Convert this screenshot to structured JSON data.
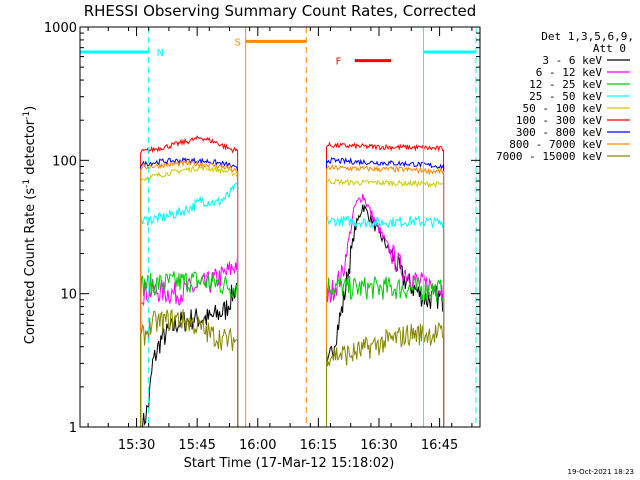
{
  "chart_data": {
    "type": "line",
    "title": "RHESSI Observing Summary Count Rates, Corrected",
    "xlabel": "Start Time (17-Mar-12 15:18:02)",
    "ylabel": "Corrected Count Rate (s",
    "ylabel_sup1": "-1",
    "ylabel_mid": " detector",
    "ylabel_sup2": "-1",
    "ylabel_end": ")",
    "yscale": "log",
    "ylim": [
      1,
      1000
    ],
    "yticks": [
      {
        "v": 1,
        "label": "1"
      },
      {
        "v": 10,
        "label": "10"
      },
      {
        "v": 100,
        "label": "100"
      },
      {
        "v": 1000,
        "label": "1000"
      }
    ],
    "xlim_min": [
      18.0,
      117.0
    ],
    "xticks": [
      {
        "m": 32,
        "label": "15:30"
      },
      {
        "m": 47,
        "label": "15:45"
      },
      {
        "m": 62,
        "label": "16:00"
      },
      {
        "m": 77,
        "label": "16:15"
      },
      {
        "m": 92,
        "label": "16:30"
      },
      {
        "m": 107,
        "label": "16:45"
      }
    ],
    "legend_title": "Det 1,3,5,6,9,",
    "legend_att": "Att 0",
    "series": [
      {
        "name": "3 - 6 keV",
        "color": "#000000",
        "seg1": [
          [
            33.5,
            1.0
          ],
          [
            35,
            1.5
          ],
          [
            36,
            3.0
          ],
          [
            38,
            4.5
          ],
          [
            42,
            6.0
          ],
          [
            46,
            6.5
          ],
          [
            50,
            6.5
          ],
          [
            54,
            7.5
          ],
          [
            57,
            12.0
          ]
        ],
        "seg2": [
          [
            79,
            2.5
          ],
          [
            83,
            8.0
          ],
          [
            86,
            30.0
          ],
          [
            88,
            46.0
          ],
          [
            91,
            32.0
          ],
          [
            95,
            20.0
          ],
          [
            98,
            13.0
          ],
          [
            102,
            10.0
          ],
          [
            104,
            9.0
          ],
          [
            106,
            9.5
          ],
          [
            108,
            9.0
          ]
        ]
      },
      {
        "name": "6 - 12 keV",
        "color": "#ff00ff",
        "seg1": [
          [
            33,
            10.0
          ],
          [
            36,
            10.5
          ],
          [
            42,
            10.0
          ],
          [
            46,
            11.0
          ],
          [
            50,
            12.0
          ],
          [
            54,
            14.0
          ],
          [
            57,
            17.0
          ]
        ],
        "seg2": [
          [
            79,
            9.0
          ],
          [
            83,
            14.0
          ],
          [
            86,
            45.0
          ],
          [
            88,
            55.0
          ],
          [
            91,
            35.0
          ],
          [
            95,
            20.0
          ],
          [
            98,
            15.0
          ],
          [
            102,
            12.0
          ],
          [
            108,
            11.0
          ]
        ]
      },
      {
        "name": "12 - 25 keV",
        "color": "#00cc00",
        "seg1": [
          [
            33,
            11.5
          ],
          [
            40,
            12.0
          ],
          [
            46,
            12.5
          ],
          [
            52,
            12.0
          ],
          [
            57,
            11.0
          ]
        ],
        "seg2": [
          [
            79,
            11.5
          ],
          [
            85,
            11.0
          ],
          [
            92,
            11.0
          ],
          [
            100,
            11.0
          ],
          [
            108,
            10.5
          ]
        ]
      },
      {
        "name": "25 - 50 keV",
        "color": "#00ffff",
        "seg1": [
          [
            33,
            35.0
          ],
          [
            38,
            37.0
          ],
          [
            42,
            40.0
          ],
          [
            46,
            45.0
          ],
          [
            48,
            50.0
          ],
          [
            52,
            48.0
          ],
          [
            55,
            55.0
          ],
          [
            57,
            68.0
          ]
        ],
        "seg2": [
          [
            79,
            35.0
          ],
          [
            85,
            35.0
          ],
          [
            90,
            34.0
          ],
          [
            100,
            35.0
          ],
          [
            108,
            34.0
          ]
        ]
      },
      {
        "name": "50 - 100 keV",
        "color": "#cccc00",
        "seg1": [
          [
            33,
            72.0
          ],
          [
            38,
            78.0
          ],
          [
            44,
            85.0
          ],
          [
            48,
            88.0
          ],
          [
            52,
            85.0
          ],
          [
            55,
            82.0
          ],
          [
            57,
            78.0
          ]
        ],
        "seg2": [
          [
            79,
            70.0
          ],
          [
            85,
            68.0
          ],
          [
            92,
            68.0
          ],
          [
            100,
            67.0
          ],
          [
            108,
            66.0
          ]
        ]
      },
      {
        "name": "100 - 300 keV",
        "color": "#ff0000",
        "seg1": [
          [
            33,
            115.0
          ],
          [
            40,
            128.0
          ],
          [
            45,
            140.0
          ],
          [
            48,
            148.0
          ],
          [
            52,
            135.0
          ],
          [
            55,
            122.0
          ],
          [
            57,
            118.0
          ]
        ],
        "seg2": [
          [
            79,
            130.0
          ],
          [
            85,
            128.0
          ],
          [
            92,
            126.0
          ],
          [
            100,
            125.0
          ],
          [
            108,
            122.0
          ]
        ]
      },
      {
        "name": "300 - 800 keV",
        "color": "#0000ff",
        "seg1": [
          [
            33,
            93.0
          ],
          [
            38,
            98.0
          ],
          [
            44,
            100.0
          ],
          [
            50,
            98.0
          ],
          [
            55,
            92.0
          ],
          [
            57,
            85.0
          ]
        ],
        "seg2": [
          [
            79,
            100.0
          ],
          [
            85,
            98.0
          ],
          [
            92,
            96.0
          ],
          [
            100,
            94.0
          ],
          [
            108,
            90.0
          ]
        ]
      },
      {
        "name": "800 - 7000 keV",
        "color": "#ff8800",
        "seg1": [
          [
            33,
            88.0
          ],
          [
            38,
            92.0
          ],
          [
            44,
            95.0
          ],
          [
            50,
            93.0
          ],
          [
            55,
            88.0
          ],
          [
            57,
            80.0
          ]
        ],
        "seg2": [
          [
            79,
            88.0
          ],
          [
            85,
            87.0
          ],
          [
            92,
            86.0
          ],
          [
            100,
            85.0
          ],
          [
            108,
            82.0
          ]
        ]
      },
      {
        "name": "7000 - 15000 keV",
        "color": "#888800",
        "seg1": [
          [
            33,
            4.5
          ],
          [
            36,
            6.0
          ],
          [
            42,
            6.5
          ],
          [
            46,
            6.0
          ],
          [
            50,
            5.0
          ],
          [
            54,
            4.5
          ],
          [
            57,
            4.5
          ]
        ],
        "seg2": [
          [
            79,
            3.5
          ],
          [
            85,
            3.5
          ],
          [
            90,
            4.0
          ],
          [
            95,
            4.5
          ],
          [
            100,
            5.0
          ],
          [
            108,
            5.0
          ]
        ]
      }
    ],
    "annotations": [
      {
        "label": "N",
        "color": "#00ffff",
        "at": 35.0,
        "bar": [
          18.0,
          35.0
        ],
        "bar_level": 650
      },
      {
        "label": "S",
        "color": "#ff8800",
        "at": 59.0,
        "bar": [
          59.0,
          74.0
        ],
        "bar_level": 780
      },
      {
        "label": "F",
        "color": "#ff0000",
        "at": 84.0,
        "bar": [
          86.0,
          95.0
        ],
        "bar_level": 560
      }
    ],
    "night_start": [
      103.0,
      116.0
    ],
    "night_level": 650,
    "saa_lines": [
      59.0,
      74.0
    ],
    "eclipse_lines": [
      18.0,
      35.0,
      103.0,
      116.0
    ],
    "footer_date": "19-Oct-2021 18:23"
  }
}
